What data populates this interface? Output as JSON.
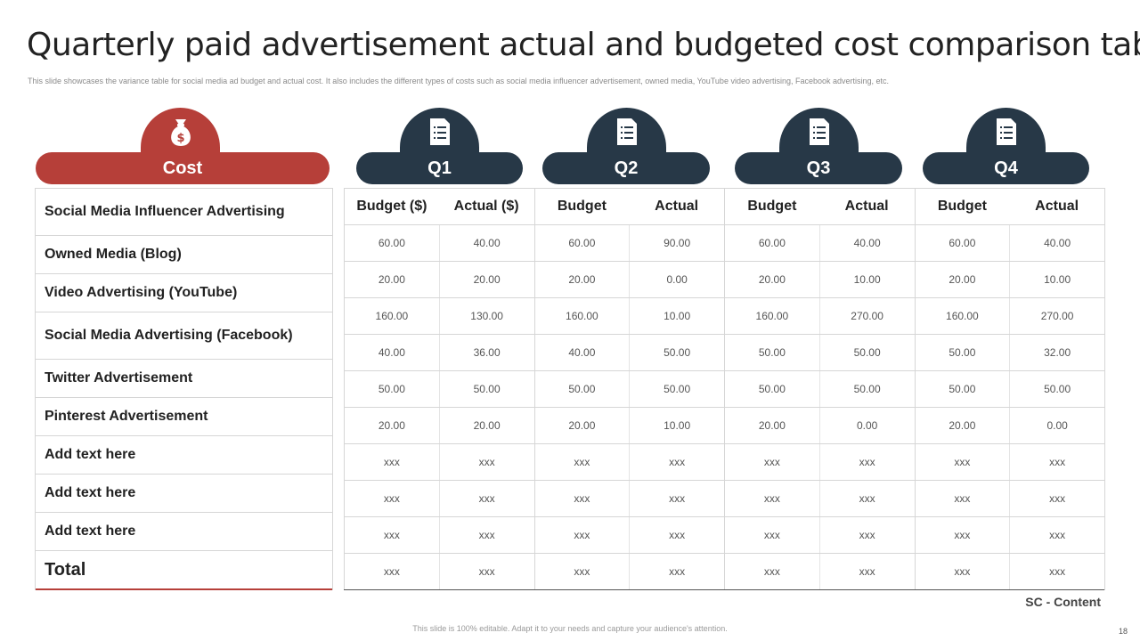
{
  "title": "Quarterly paid advertisement actual and budgeted cost comparison table",
  "subtitle": "This slide showcases the variance table for social media ad budget and actual cost. It also includes the different types of costs such as social media influencer advertisement, owned media, YouTube video advertising, Facebook advertising, etc.",
  "colors": {
    "accent_red": "#b63f39",
    "navy": "#273847"
  },
  "headers": {
    "cost": {
      "label": "Cost",
      "icon": "money-bag-icon"
    },
    "quarters": [
      {
        "label": "Q1",
        "icon": "document-list-icon"
      },
      {
        "label": "Q2",
        "icon": "document-list-icon"
      },
      {
        "label": "Q3",
        "icon": "document-list-icon"
      },
      {
        "label": "Q4",
        "icon": "document-list-icon"
      }
    ]
  },
  "cost_items": [
    "Social Media Influencer Advertising",
    "Owned Media (Blog)",
    "Video Advertising (YouTube)",
    "Social Media Advertising (Facebook)",
    "Twitter Advertisement",
    "Pinterest Advertisement",
    "Add text here",
    "Add text here",
    "Add text here",
    "Total"
  ],
  "column_headers": [
    "Budget ($)",
    "Actual ($)",
    "Budget",
    "Actual",
    "Budget",
    "Actual",
    "Budget",
    "Actual"
  ],
  "rows": [
    [
      "60.00",
      "40.00",
      "60.00",
      "90.00",
      "60.00",
      "40.00",
      "60.00",
      "40.00"
    ],
    [
      "20.00",
      "20.00",
      "20.00",
      "0.00",
      "20.00",
      "10.00",
      "20.00",
      "10.00"
    ],
    [
      "160.00",
      "130.00",
      "160.00",
      "10.00",
      "160.00",
      "270.00",
      "160.00",
      "270.00"
    ],
    [
      "40.00",
      "36.00",
      "40.00",
      "50.00",
      "50.00",
      "50.00",
      "50.00",
      "32.00"
    ],
    [
      "50.00",
      "50.00",
      "50.00",
      "50.00",
      "50.00",
      "50.00",
      "50.00",
      "50.00"
    ],
    [
      "20.00",
      "20.00",
      "20.00",
      "10.00",
      "20.00",
      "0.00",
      "20.00",
      "0.00"
    ],
    [
      "xxx",
      "xxx",
      "xxx",
      "xxx",
      "xxx",
      "xxx",
      "xxx",
      "xxx"
    ],
    [
      "xxx",
      "xxx",
      "xxx",
      "xxx",
      "xxx",
      "xxx",
      "xxx",
      "xxx"
    ],
    [
      "xxx",
      "xxx",
      "xxx",
      "xxx",
      "xxx",
      "xxx",
      "xxx",
      "xxx"
    ],
    [
      "xxx",
      "xxx",
      "xxx",
      "xxx",
      "xxx",
      "xxx",
      "xxx",
      "xxx"
    ]
  ],
  "sc_label": "SC - Content",
  "footer": "This slide is 100% editable. Adapt it to your needs and capture your audience's attention.",
  "page_number": "18"
}
